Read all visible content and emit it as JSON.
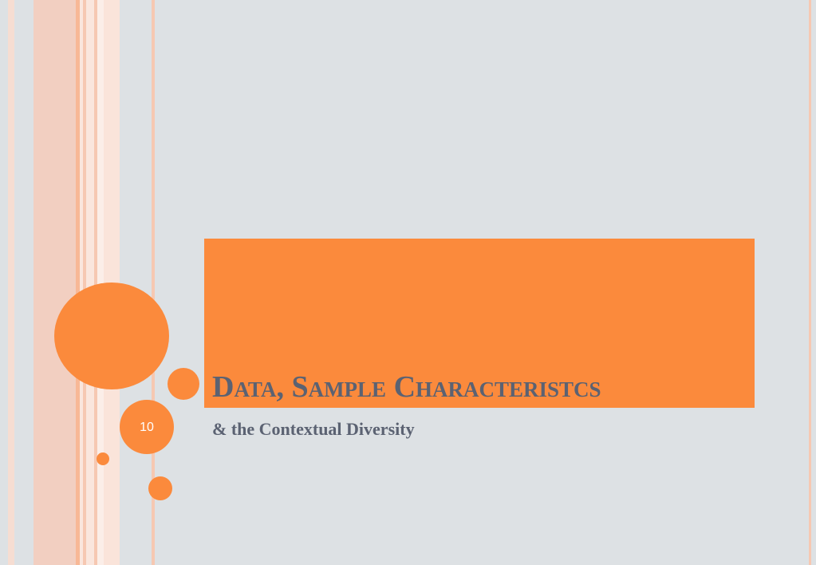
{
  "slide": {
    "title": "Data, Sample Characteristcs",
    "subtitle": "& the Contextual Diversity",
    "slide_number": "10"
  }
}
